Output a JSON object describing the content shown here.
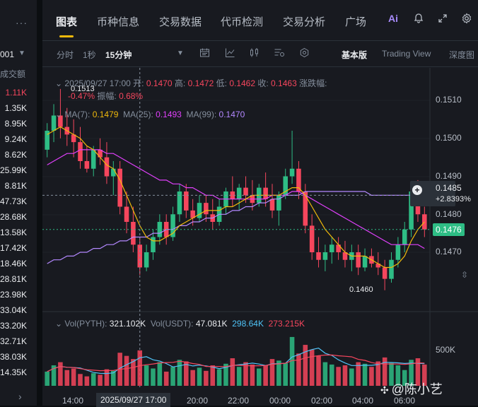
{
  "left_panel": {
    "dots": "···",
    "pair_fragment": "001",
    "volume_header": "成交额",
    "volumes": [
      "1.11K",
      "1.35K",
      "8.95K",
      "9.24K",
      "8.62K",
      "25.99K",
      "8.81K",
      "47.73K",
      "28.68K",
      "13.58K",
      "17.42K",
      "18.46K",
      "28.81K",
      "23.98K",
      "33.04K",
      "33.20K",
      "32.71K",
      "38.03K",
      "14.35K"
    ],
    "vol_colors": [
      "#f6465d",
      "#eaecef",
      "#eaecef",
      "#eaecef",
      "#eaecef",
      "#eaecef",
      "#eaecef",
      "#eaecef",
      "#eaecef",
      "#eaecef",
      "#eaecef",
      "#eaecef",
      "#eaecef",
      "#eaecef",
      "#eaecef",
      "#eaecef",
      "#eaecef",
      "#eaecef",
      "#eaecef"
    ]
  },
  "tabs": {
    "items": [
      "图表",
      "币种信息",
      "交易数据",
      "代币检测",
      "交易分析",
      "广场"
    ],
    "active": "图表",
    "ai_label": "Ai"
  },
  "toolbar": {
    "intervals": [
      "分时",
      "1秒",
      "15分钟"
    ],
    "selected_interval": "15分钟",
    "basic_view": "基本版",
    "trading_view": "Trading View",
    "depth_view": "深度图"
  },
  "ohlc": {
    "time": "2025/09/27 17:00",
    "open_label": "开:",
    "open": "0.1470",
    "high_label": "高:",
    "high": "0.1472",
    "low_label": "低:",
    "low": "0.1462",
    "close_label": "收:",
    "close": "0.1463",
    "change_label": "涨跌幅:",
    "change": "-0.47%",
    "amp_label": "振幅:",
    "amplitude": "0.68%",
    "peak_label": "0.1513"
  },
  "ma": {
    "ma7_label": "MA(7):",
    "ma7": "0.1479",
    "ma25_label": "MA(25):",
    "ma25": "0.1493",
    "ma99_label": "MA(99):",
    "ma99": "0.1470"
  },
  "price_axis": [
    "0.1510",
    "0.1500",
    "0.1490",
    "0.1480",
    "0.1470"
  ],
  "cursor_price": "0.1485",
  "cursor_change": "+2.8393%",
  "last_price": "0.1476",
  "low_marker": "0.1460",
  "volume_legend": {
    "vol_label": "Vol(PYTH):",
    "vol": "321.102K",
    "volu_label": "Vol(USDT):",
    "volu": "47.081K",
    "ma_a": "298.64K",
    "ma_b": "273.215K"
  },
  "volume_axis": "500K",
  "time_axis": [
    "14:00",
    "2025/09/27 17:00",
    "20:00",
    "22:00",
    "00:00",
    "02:00",
    "04:00",
    "06:00"
  ],
  "watermark": "@陈小艺",
  "colors": {
    "up": "#2ebd85",
    "down": "#f6465d",
    "ma7": "#f0b90b",
    "ma25": "#e040fb",
    "ma99": "#b388ff",
    "accent": "#f0b90b"
  },
  "chart_data": {
    "type": "candlestick",
    "interval": "15m",
    "y_axis": [
      0.1464,
      0.1514
    ],
    "volume_max": 700000,
    "candles": [
      [
        0.1497,
        0.1504,
        0.1495,
        0.1502
      ],
      [
        0.1502,
        0.1509,
        0.1499,
        0.1506
      ],
      [
        0.1506,
        0.1513,
        0.15,
        0.1503
      ],
      [
        0.1503,
        0.1508,
        0.1498,
        0.1501
      ],
      [
        0.1501,
        0.1505,
        0.1495,
        0.1499
      ],
      [
        0.1499,
        0.1503,
        0.1492,
        0.1494
      ],
      [
        0.1494,
        0.1498,
        0.1491,
        0.1492
      ],
      [
        0.1492,
        0.1498,
        0.149,
        0.1497
      ],
      [
        0.1497,
        0.15,
        0.1493,
        0.1495
      ],
      [
        0.1495,
        0.1499,
        0.1488,
        0.149
      ],
      [
        0.149,
        0.1494,
        0.1485,
        0.1492
      ],
      [
        0.1492,
        0.1494,
        0.148,
        0.1482
      ],
      [
        0.1482,
        0.1486,
        0.1475,
        0.1478
      ],
      [
        0.1478,
        0.1482,
        0.147,
        0.1472
      ],
      [
        0.1472,
        0.1474,
        0.1464,
        0.1466
      ],
      [
        0.1466,
        0.1472,
        0.1465,
        0.147
      ],
      [
        0.147,
        0.1476,
        0.1468,
        0.1474
      ],
      [
        0.1474,
        0.148,
        0.1472,
        0.1478
      ],
      [
        0.1478,
        0.148,
        0.1472,
        0.1474
      ],
      [
        0.1474,
        0.1482,
        0.1473,
        0.148
      ],
      [
        0.148,
        0.1488,
        0.1478,
        0.1486
      ],
      [
        0.1486,
        0.1488,
        0.1479,
        0.1481
      ],
      [
        0.1481,
        0.1484,
        0.1477,
        0.1479
      ],
      [
        0.1479,
        0.1485,
        0.1478,
        0.1483
      ],
      [
        0.1483,
        0.1485,
        0.1478,
        0.148
      ],
      [
        0.148,
        0.1484,
        0.1476,
        0.1478
      ],
      [
        0.1478,
        0.1484,
        0.1477,
        0.1482
      ],
      [
        0.1482,
        0.1487,
        0.148,
        0.1486
      ],
      [
        0.1486,
        0.149,
        0.1482,
        0.1484
      ],
      [
        0.1484,
        0.1488,
        0.1481,
        0.1487
      ],
      [
        0.1487,
        0.149,
        0.1483,
        0.1485
      ],
      [
        0.1485,
        0.1489,
        0.1481,
        0.1483
      ],
      [
        0.1483,
        0.1488,
        0.1482,
        0.1487
      ],
      [
        0.1487,
        0.1491,
        0.1482,
        0.1484
      ],
      [
        0.1484,
        0.1488,
        0.1479,
        0.1481
      ],
      [
        0.1481,
        0.1486,
        0.1477,
        0.1485
      ],
      [
        0.1485,
        0.1492,
        0.1484,
        0.149
      ],
      [
        0.149,
        0.1502,
        0.1488,
        0.1492
      ],
      [
        0.1492,
        0.1494,
        0.1484,
        0.1486
      ],
      [
        0.1486,
        0.1488,
        0.1475,
        0.1477
      ],
      [
        0.1477,
        0.148,
        0.1468,
        0.147
      ],
      [
        0.147,
        0.1474,
        0.1466,
        0.1468
      ],
      [
        0.1468,
        0.1472,
        0.1465,
        0.147
      ],
      [
        0.147,
        0.1474,
        0.1467,
        0.1472
      ],
      [
        0.1472,
        0.1474,
        0.1468,
        0.147
      ],
      [
        0.147,
        0.1473,
        0.1466,
        0.1468
      ],
      [
        0.1468,
        0.1472,
        0.1465,
        0.147
      ],
      [
        0.147,
        0.1472,
        0.1464,
        0.1466
      ],
      [
        0.1466,
        0.1471,
        0.1465,
        0.1469
      ],
      [
        0.1469,
        0.1471,
        0.1466,
        0.1467
      ],
      [
        0.1467,
        0.147,
        0.1464,
        0.1466
      ],
      [
        0.1466,
        0.1468,
        0.146,
        0.1463
      ],
      [
        0.1463,
        0.147,
        0.1462,
        0.1468
      ],
      [
        0.1468,
        0.1474,
        0.1466,
        0.1472
      ],
      [
        0.1472,
        0.1478,
        0.147,
        0.1476
      ],
      [
        0.1476,
        0.1488,
        0.1474,
        0.1486
      ],
      [
        0.1486,
        0.1489,
        0.1478,
        0.148
      ],
      [
        0.148,
        0.1482,
        0.1474,
        0.1476
      ]
    ],
    "volumes": [
      180000,
      260000,
      300000,
      200000,
      220000,
      150000,
      120000,
      160000,
      140000,
      210000,
      190000,
      420000,
      380000,
      340000,
      450000,
      260000,
      220000,
      300000,
      180000,
      240000,
      330000,
      310000,
      200000,
      230000,
      190000,
      260000,
      210000,
      280000,
      350000,
      240000,
      300000,
      270000,
      220000,
      260000,
      340000,
      320000,
      290000,
      620000,
      410000,
      520000,
      460000,
      380000,
      300000,
      270000,
      240000,
      260000,
      220000,
      300000,
      280000,
      240000,
      310000,
      360000,
      290000,
      260000,
      200000,
      330000,
      350000,
      270000
    ],
    "ma7": [
      0.1501,
      0.1502,
      0.1503,
      0.1502,
      0.1501,
      0.15,
      0.1498,
      0.1497,
      0.1495,
      0.1493,
      0.1492,
      0.1489,
      0.1485,
      0.1481,
      0.1477,
      0.1474,
      0.1473,
      0.1473,
      0.1474,
      0.1475,
      0.1477,
      0.1478,
      0.1479,
      0.148,
      0.1481,
      0.1481,
      0.1481,
      0.1482,
      0.1482,
      0.1483,
      0.1484,
      0.1485,
      0.1485,
      0.1485,
      0.1485,
      0.1485,
      0.1486,
      0.1487,
      0.1487,
      0.1485,
      0.1482,
      0.1479,
      0.1476,
      0.1474,
      0.1472,
      0.147,
      0.1469,
      0.1469,
      0.1469,
      0.1468,
      0.1467,
      0.1466,
      0.1466,
      0.1467,
      0.1469,
      0.1473,
      0.1476,
      0.1478
    ],
    "ma25": [
      0.1493,
      0.1494,
      0.1495,
      0.1496,
      0.1496,
      0.1497,
      0.1497,
      0.1497,
      0.1497,
      0.1496,
      0.1496,
      0.1495,
      0.1494,
      0.1493,
      0.1492,
      0.1491,
      0.149,
      0.1489,
      0.1489,
      0.1488,
      0.1488,
      0.1487,
      0.1487,
      0.1486,
      0.1485,
      0.1485,
      0.1484,
      0.1484,
      0.1484,
      0.1484,
      0.1484,
      0.1484,
      0.1484,
      0.1484,
      0.1485,
      0.1485,
      0.1485,
      0.1486,
      0.1486,
      0.1485,
      0.1484,
      0.1483,
      0.1482,
      0.1481,
      0.148,
      0.1479,
      0.1478,
      0.1477,
      0.1476,
      0.1475,
      0.1474,
      0.1473,
      0.1472,
      0.1472,
      0.1472,
      0.1472,
      0.1472,
      0.1471
    ],
    "ma99": [
      0.1467,
      0.1468,
      0.1468,
      0.1469,
      0.1469,
      0.147,
      0.147,
      0.1471,
      0.1471,
      0.1472,
      0.1472,
      0.1473,
      0.1473,
      0.1474,
      0.1474,
      0.1474,
      0.1475,
      0.1475,
      0.1476,
      0.1476,
      0.1477,
      0.1477,
      0.1478,
      0.1478,
      0.1479,
      0.1479,
      0.148,
      0.148,
      0.1481,
      0.1481,
      0.1482,
      0.1482,
      0.1483,
      0.1483,
      0.1484,
      0.1484,
      0.1485,
      0.1485,
      0.1485,
      0.1486,
      0.1486,
      0.1486,
      0.1486,
      0.1486,
      0.1486,
      0.1486,
      0.1486,
      0.1486,
      0.1486,
      0.1485,
      0.1485,
      0.1485,
      0.1485,
      0.1485,
      0.1485,
      0.1485,
      0.1485,
      0.1485
    ]
  }
}
